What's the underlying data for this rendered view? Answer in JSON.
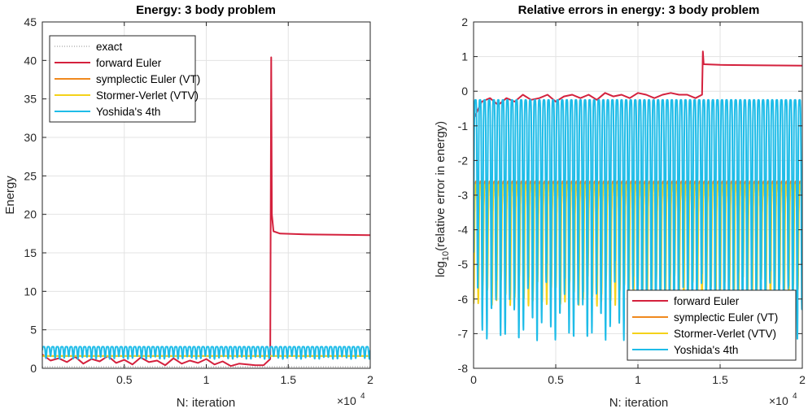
{
  "chart_data": [
    {
      "type": "line",
      "title": "Energy: 3 body problem",
      "xlabel": "N: iteration",
      "ylabel": "Energy",
      "x_exponent_label": "×10",
      "x_exponent": "4",
      "xlim": [
        0,
        20000
      ],
      "ylim": [
        0,
        45
      ],
      "xticks": [
        0.5,
        1,
        1.5,
        2
      ],
      "yticks": [
        0,
        5,
        10,
        15,
        20,
        25,
        30,
        35,
        40,
        45
      ],
      "grid": true,
      "legend_position": "top-left",
      "series": [
        {
          "name": "exact",
          "color": "#8c8c8c",
          "style": "dotted",
          "points": [
            [
              0,
              0.2
            ],
            [
              20000,
              0.2
            ]
          ]
        },
        {
          "name": "forward Euler",
          "color": "#d4213d",
          "points": [
            [
              0,
              1.8
            ],
            [
              500,
              1.0
            ],
            [
              1000,
              1.3
            ],
            [
              1500,
              0.8
            ],
            [
              2000,
              1.5
            ],
            [
              2500,
              0.6
            ],
            [
              3000,
              1.2
            ],
            [
              3500,
              0.9
            ],
            [
              4000,
              1.6
            ],
            [
              4500,
              0.7
            ],
            [
              5000,
              1.1
            ],
            [
              5500,
              0.5
            ],
            [
              6000,
              1.4
            ],
            [
              6500,
              0.8
            ],
            [
              7000,
              1.0
            ],
            [
              7500,
              0.4
            ],
            [
              8000,
              1.3
            ],
            [
              8500,
              0.6
            ],
            [
              9000,
              1.0
            ],
            [
              9500,
              0.7
            ],
            [
              10000,
              1.2
            ],
            [
              10500,
              0.5
            ],
            [
              11000,
              0.9
            ],
            [
              11500,
              0.3
            ],
            [
              12000,
              0.6
            ],
            [
              12500,
              0.5
            ],
            [
              13000,
              0.4
            ],
            [
              13500,
              0.4
            ],
            [
              13900,
              1.2
            ],
            [
              13960,
              40.4
            ],
            [
              14000,
              20.0
            ],
            [
              14100,
              17.8
            ],
            [
              14500,
              17.5
            ],
            [
              16000,
              17.4
            ],
            [
              18000,
              17.35
            ],
            [
              20000,
              17.3
            ]
          ]
        },
        {
          "name": "symplectic Euler (VT)",
          "color": "#f0891e",
          "points": [
            [
              0,
              1.6
            ],
            [
              20000,
              1.6
            ]
          ]
        },
        {
          "name": "Stormer-Verlet (VTV)",
          "color": "#f4d21a",
          "points": [
            [
              0,
              1.6
            ],
            [
              20000,
              1.6
            ]
          ]
        },
        {
          "name": "Yoshida's 4th",
          "color": "#1ebce8",
          "oscillation": {
            "low": 1.2,
            "high": 2.8,
            "cycles": 72
          }
        }
      ]
    },
    {
      "type": "line",
      "title": "Relative errors in energy: 3 body problem",
      "xlabel": "N: iteration",
      "ylabel": "log10(relative error in energy)",
      "x_exponent_label": "×10",
      "x_exponent": "4",
      "xlim": [
        0,
        20000
      ],
      "ylim": [
        -8,
        2
      ],
      "xticks": [
        0,
        0.5,
        1,
        1.5,
        2
      ],
      "yticks": [
        -8,
        -7,
        -6,
        -5,
        -4,
        -3,
        -2,
        -1,
        0,
        1,
        2
      ],
      "grid": true,
      "legend_position": "bottom-right",
      "series": [
        {
          "name": "forward Euler",
          "color": "#d4213d",
          "points": [
            [
              0,
              -0.8
            ],
            [
              500,
              -0.3
            ],
            [
              1000,
              -0.2
            ],
            [
              1500,
              -0.4
            ],
            [
              2000,
              -0.2
            ],
            [
              2500,
              -0.3
            ],
            [
              3000,
              -0.1
            ],
            [
              3500,
              -0.25
            ],
            [
              4000,
              -0.2
            ],
            [
              4500,
              -0.1
            ],
            [
              5000,
              -0.3
            ],
            [
              5500,
              -0.15
            ],
            [
              6000,
              -0.1
            ],
            [
              6500,
              -0.2
            ],
            [
              7000,
              -0.1
            ],
            [
              7500,
              -0.25
            ],
            [
              8000,
              -0.05
            ],
            [
              8500,
              -0.15
            ],
            [
              9000,
              -0.1
            ],
            [
              9500,
              -0.2
            ],
            [
              10000,
              -0.05
            ],
            [
              10500,
              -0.1
            ],
            [
              11000,
              -0.2
            ],
            [
              11500,
              -0.1
            ],
            [
              12000,
              -0.05
            ],
            [
              12500,
              -0.1
            ],
            [
              13000,
              -0.1
            ],
            [
              13500,
              -0.2
            ],
            [
              13900,
              -0.1
            ],
            [
              13950,
              1.15
            ],
            [
              14000,
              0.78
            ],
            [
              15000,
              0.76
            ],
            [
              17000,
              0.75
            ],
            [
              20000,
              0.74
            ]
          ]
        },
        {
          "name": "symplectic Euler (VT)",
          "color": "#f0891e",
          "oscillation": {
            "low": -3.6,
            "high": -2.6,
            "cycles": 72
          }
        },
        {
          "name": "Stormer-Verlet (VTV)",
          "color": "#f4d21a",
          "oscillation": {
            "low": -6.2,
            "high": -2.7,
            "cycles": 72
          }
        },
        {
          "name": "Yoshida's 4th",
          "color": "#1ebce8",
          "oscillation": {
            "low": -7.2,
            "high": -0.25,
            "cycles": 72
          }
        }
      ]
    }
  ]
}
